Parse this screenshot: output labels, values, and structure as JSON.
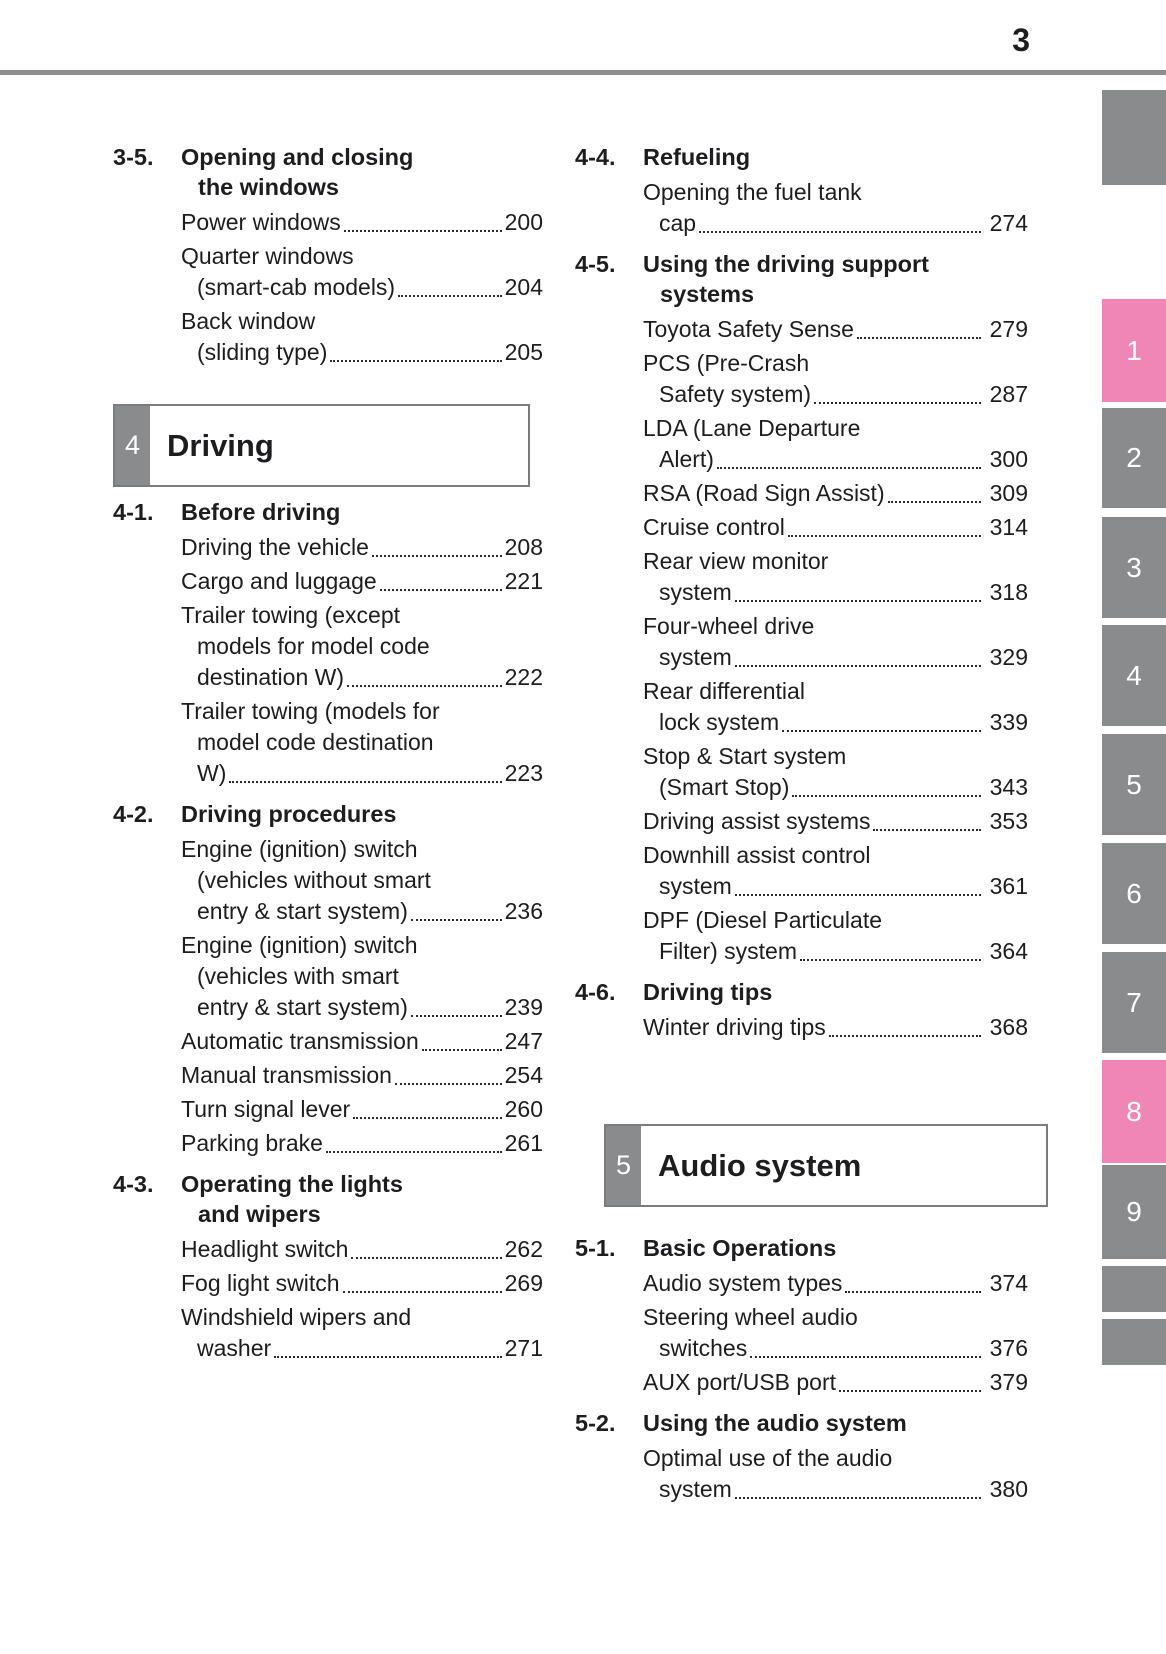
{
  "page": {
    "number": "3"
  },
  "colors": {
    "accent_pink": "#ef86b5",
    "tab_gray": "#8a8b8d",
    "text": "#1d1d1f"
  },
  "columns": {
    "left": {
      "blocks": [
        {
          "type": "section",
          "num": "3-5.",
          "title_lines": [
            "Opening and closing",
            "the windows"
          ],
          "items": [
            {
              "lines": [
                "Power windows"
              ],
              "page": "200"
            },
            {
              "lines": [
                "Quarter windows",
                "(smart-cab models)"
              ],
              "page": "204"
            },
            {
              "lines": [
                "Back window",
                "(sliding type)"
              ],
              "page": "205"
            }
          ]
        },
        {
          "type": "chapter",
          "num": "4",
          "title": "Driving"
        },
        {
          "type": "section",
          "num": "4-1.",
          "title_lines": [
            "Before driving"
          ],
          "items": [
            {
              "lines": [
                "Driving the vehicle"
              ],
              "page": "208"
            },
            {
              "lines": [
                "Cargo and luggage"
              ],
              "page": "221"
            },
            {
              "lines": [
                "Trailer towing (except",
                "models for model code",
                "destination W)"
              ],
              "page": "222"
            },
            {
              "lines": [
                "Trailer towing (models for",
                "model code destination",
                "W)"
              ],
              "page": "223"
            }
          ]
        },
        {
          "type": "section",
          "num": "4-2.",
          "title_lines": [
            "Driving procedures"
          ],
          "items": [
            {
              "lines": [
                "Engine (ignition) switch",
                "(vehicles without smart",
                "entry & start system)"
              ],
              "page": "236"
            },
            {
              "lines": [
                "Engine (ignition) switch",
                "(vehicles with smart",
                "entry & start system)"
              ],
              "page": "239"
            },
            {
              "lines": [
                "Automatic transmission"
              ],
              "page": "247"
            },
            {
              "lines": [
                "Manual transmission"
              ],
              "page": "254"
            },
            {
              "lines": [
                "Turn signal lever"
              ],
              "page": "260"
            },
            {
              "lines": [
                "Parking brake"
              ],
              "page": "261"
            }
          ]
        },
        {
          "type": "section",
          "num": "4-3.",
          "title_lines": [
            "Operating the lights",
            "and wipers"
          ],
          "items": [
            {
              "lines": [
                "Headlight switch"
              ],
              "page": "262"
            },
            {
              "lines": [
                "Fog light switch"
              ],
              "page": "269"
            },
            {
              "lines": [
                "Windshield wipers and",
                "washer"
              ],
              "page": "271"
            }
          ]
        }
      ]
    },
    "right": {
      "blocks": [
        {
          "type": "section",
          "num": "4-4.",
          "title_lines": [
            "Refueling"
          ],
          "items": [
            {
              "lines": [
                "Opening the fuel tank",
                "cap"
              ],
              "page": "274"
            }
          ]
        },
        {
          "type": "section",
          "num": "4-5.",
          "title_lines": [
            "Using the driving support",
            "systems"
          ],
          "items": [
            {
              "lines": [
                "Toyota Safety Sense"
              ],
              "page": "279"
            },
            {
              "lines": [
                "PCS (Pre-Crash",
                "Safety system)"
              ],
              "page": "287"
            },
            {
              "lines": [
                "LDA (Lane Departure",
                "Alert)"
              ],
              "page": "300"
            },
            {
              "lines": [
                "RSA (Road Sign Assist)"
              ],
              "page": "309"
            },
            {
              "lines": [
                "Cruise control"
              ],
              "page": "314"
            },
            {
              "lines": [
                "Rear view monitor",
                "system"
              ],
              "page": "318"
            },
            {
              "lines": [
                "Four-wheel drive",
                "system"
              ],
              "page": "329"
            },
            {
              "lines": [
                "Rear differential",
                "lock system"
              ],
              "page": "339"
            },
            {
              "lines": [
                "Stop & Start system",
                "(Smart Stop)"
              ],
              "page": "343"
            },
            {
              "lines": [
                "Driving assist systems"
              ],
              "page": "353"
            },
            {
              "lines": [
                "Downhill assist control",
                "system"
              ],
              "page": "361"
            },
            {
              "lines": [
                "DPF (Diesel Particulate",
                "Filter) system"
              ],
              "page": "364"
            }
          ]
        },
        {
          "type": "section",
          "num": "4-6.",
          "title_lines": [
            "Driving tips"
          ],
          "items": [
            {
              "lines": [
                "Winter driving tips"
              ],
              "page": "368"
            }
          ]
        },
        {
          "type": "chapter",
          "num": "5",
          "title": "Audio system"
        },
        {
          "type": "section",
          "num": "5-1.",
          "title_lines": [
            "Basic Operations"
          ],
          "items": [
            {
              "lines": [
                "Audio system types"
              ],
              "page": "374"
            },
            {
              "lines": [
                "Steering wheel audio",
                "switches"
              ],
              "page": "376"
            },
            {
              "lines": [
                "AUX port/USB port"
              ],
              "page": "379"
            }
          ]
        },
        {
          "type": "section",
          "num": "5-2.",
          "title_lines": [
            "Using the audio system"
          ],
          "items": [
            {
              "lines": [
                "Optimal use of the audio",
                "system"
              ],
              "page": "380"
            }
          ]
        }
      ]
    }
  },
  "side_tabs": [
    {
      "label": "",
      "highlight": false
    },
    {
      "label": "1",
      "highlight": true
    },
    {
      "label": "2",
      "highlight": false
    },
    {
      "label": "3",
      "highlight": false
    },
    {
      "label": "4",
      "highlight": false
    },
    {
      "label": "5",
      "highlight": false
    },
    {
      "label": "6",
      "highlight": false
    },
    {
      "label": "7",
      "highlight": false
    },
    {
      "label": "8",
      "highlight": true
    },
    {
      "label": "9",
      "highlight": false
    },
    {
      "label": "",
      "highlight": false
    },
    {
      "label": "",
      "highlight": false
    }
  ]
}
